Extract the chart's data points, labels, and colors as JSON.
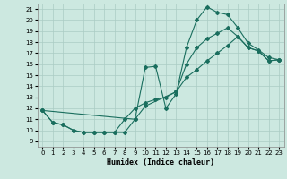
{
  "xlabel": "Humidex (Indice chaleur)",
  "background_color": "#cce8e0",
  "grid_color": "#aaccc4",
  "line_color": "#1a6e5e",
  "xlim": [
    -0.5,
    23.5
  ],
  "ylim": [
    8.5,
    21.5
  ],
  "xticks": [
    0,
    1,
    2,
    3,
    4,
    5,
    6,
    7,
    8,
    9,
    10,
    11,
    12,
    13,
    14,
    15,
    16,
    17,
    18,
    19,
    20,
    21,
    22,
    23
  ],
  "yticks": [
    9,
    10,
    11,
    12,
    13,
    14,
    15,
    16,
    17,
    18,
    19,
    20,
    21
  ],
  "curve1_x": [
    0,
    1,
    2,
    3,
    4,
    5,
    6,
    7,
    8,
    9,
    10,
    11,
    12,
    13,
    14,
    15,
    16,
    17,
    18,
    19,
    20,
    21,
    22,
    23
  ],
  "curve1_y": [
    11.8,
    10.7,
    10.5,
    10.0,
    9.8,
    9.8,
    9.8,
    9.8,
    9.8,
    11.0,
    15.7,
    15.8,
    12.0,
    13.3,
    17.5,
    20.0,
    21.2,
    20.7,
    20.5,
    19.3,
    17.9,
    17.3,
    16.6,
    16.4
  ],
  "curve2_x": [
    0,
    1,
    2,
    3,
    4,
    5,
    6,
    7,
    8,
    9,
    10,
    11,
    12,
    13,
    14,
    15,
    16,
    17,
    18,
    19,
    20,
    21,
    22,
    23
  ],
  "curve2_y": [
    11.8,
    10.7,
    10.5,
    10.0,
    9.8,
    9.8,
    9.8,
    9.8,
    11.0,
    12.0,
    12.5,
    12.8,
    13.0,
    13.5,
    16.0,
    17.5,
    18.3,
    18.8,
    19.3,
    18.5,
    17.5,
    17.2,
    16.3,
    16.4
  ],
  "curve3_x": [
    0,
    9,
    10,
    13,
    14,
    15,
    16,
    17,
    18,
    19,
    20,
    21,
    22,
    23
  ],
  "curve3_y": [
    11.8,
    11.0,
    12.2,
    13.5,
    14.8,
    15.5,
    16.3,
    17.0,
    17.7,
    18.5,
    17.5,
    17.2,
    16.3,
    16.4
  ]
}
